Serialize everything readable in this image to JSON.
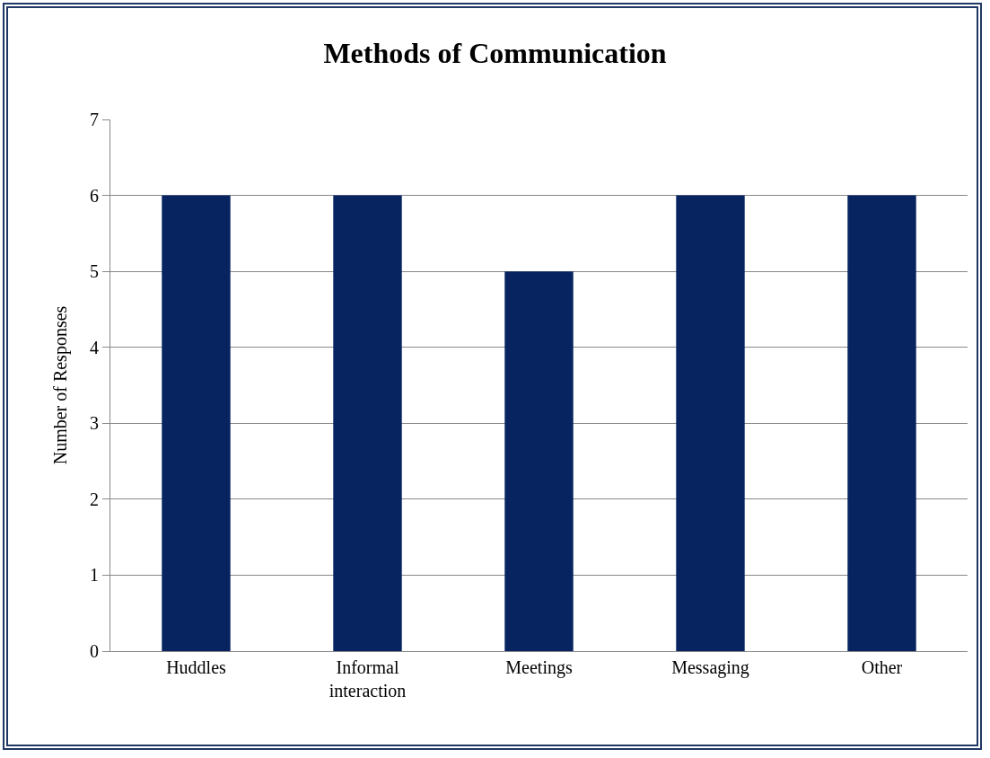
{
  "chart_data": {
    "type": "bar",
    "title": "Methods of Communication",
    "ylabel": "Number of Responses",
    "categories": [
      "Huddles",
      "Informal interaction",
      "Meetings",
      "Messaging",
      "Other"
    ],
    "values": [
      6,
      6,
      5,
      6,
      6
    ],
    "color": "#072461",
    "ylim": [
      0,
      7
    ],
    "yticks": [
      0,
      1,
      2,
      3,
      4,
      5,
      6,
      7
    ],
    "grid": "y",
    "legend": false
  }
}
